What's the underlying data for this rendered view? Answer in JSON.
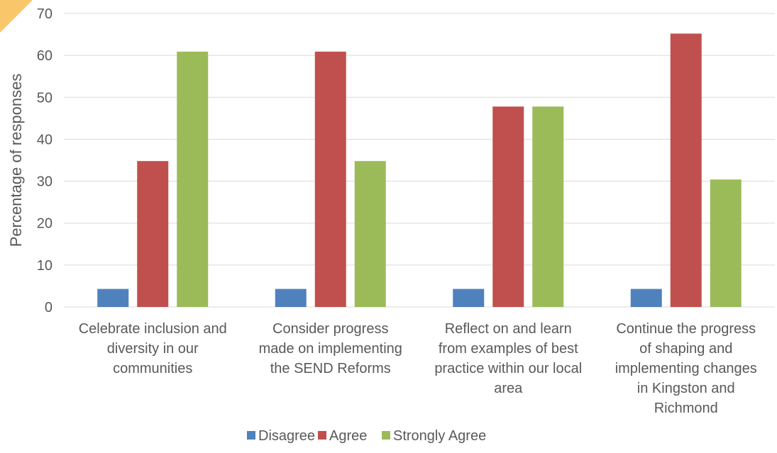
{
  "chart_data": {
    "type": "bar",
    "title": "",
    "xlabel": "",
    "ylabel": "Percentage of responses",
    "ylim": [
      0,
      70
    ],
    "yticks": [
      0,
      10,
      20,
      30,
      40,
      50,
      60,
      70
    ],
    "grid": true,
    "legend_position": "bottom",
    "categories": [
      [
        "Celebrate inclusion and",
        "diversity in our",
        "communities"
      ],
      [
        "Consider progress",
        "made on implementing",
        "the SEND Reforms"
      ],
      [
        "Reflect on and learn",
        "from examples of best",
        "practice within our local",
        "area"
      ],
      [
        "Continue the progress",
        "of shaping and",
        "implementing changes",
        "in Kingston and",
        "Richmond"
      ]
    ],
    "series": [
      {
        "name": "Disagree",
        "color": "#4F81BD",
        "values": [
          4.3,
          4.3,
          4.3,
          4.3
        ]
      },
      {
        "name": "Agree",
        "color": "#C0504D",
        "values": [
          34.8,
          60.9,
          47.8,
          65.2
        ]
      },
      {
        "name": "Strongly Agree",
        "color": "#9BBB59",
        "values": [
          60.9,
          34.8,
          47.8,
          30.4
        ]
      }
    ]
  },
  "colors": {
    "gridline": "#D9D9D9",
    "axis_text": "#595959",
    "corner_accent": "#F9C66A"
  }
}
